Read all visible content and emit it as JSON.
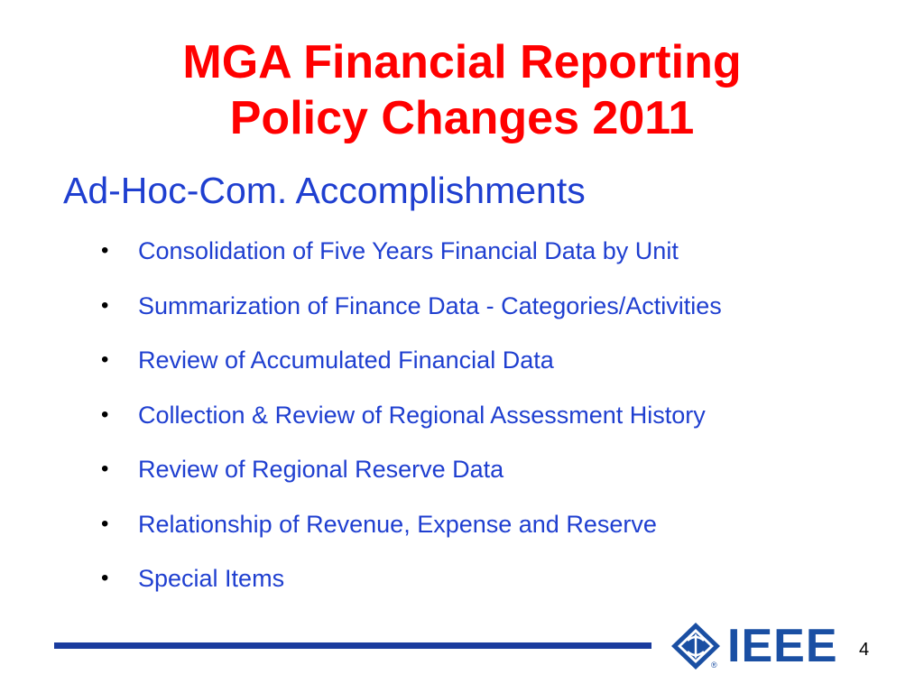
{
  "slide": {
    "title_line1": "MGA Financial Reporting",
    "title_line2": "Policy Changes 2011",
    "subtitle": "Ad-Hoc-Com. Accomplishments",
    "bullet_symbol": "•",
    "bullets": [
      "Consolidation of Five Years Financial  Data by Unit",
      "Summarization of Finance Data - Categories/Activities",
      "Review of Accumulated Financial Data",
      "Collection & Review of Regional Assessment History",
      "Review of Regional Reserve Data",
      "Relationship of  Revenue, Expense and Reserve",
      "Special Items"
    ],
    "page_number": "4"
  },
  "logo": {
    "text": "IEEE",
    "registered": "®",
    "icon": "ieee-diamond-icon"
  },
  "colors": {
    "title": "#ff0000",
    "body_text": "#1f3fd0",
    "footer_line": "#1a3c9e",
    "logo": "#1a4fa3"
  }
}
